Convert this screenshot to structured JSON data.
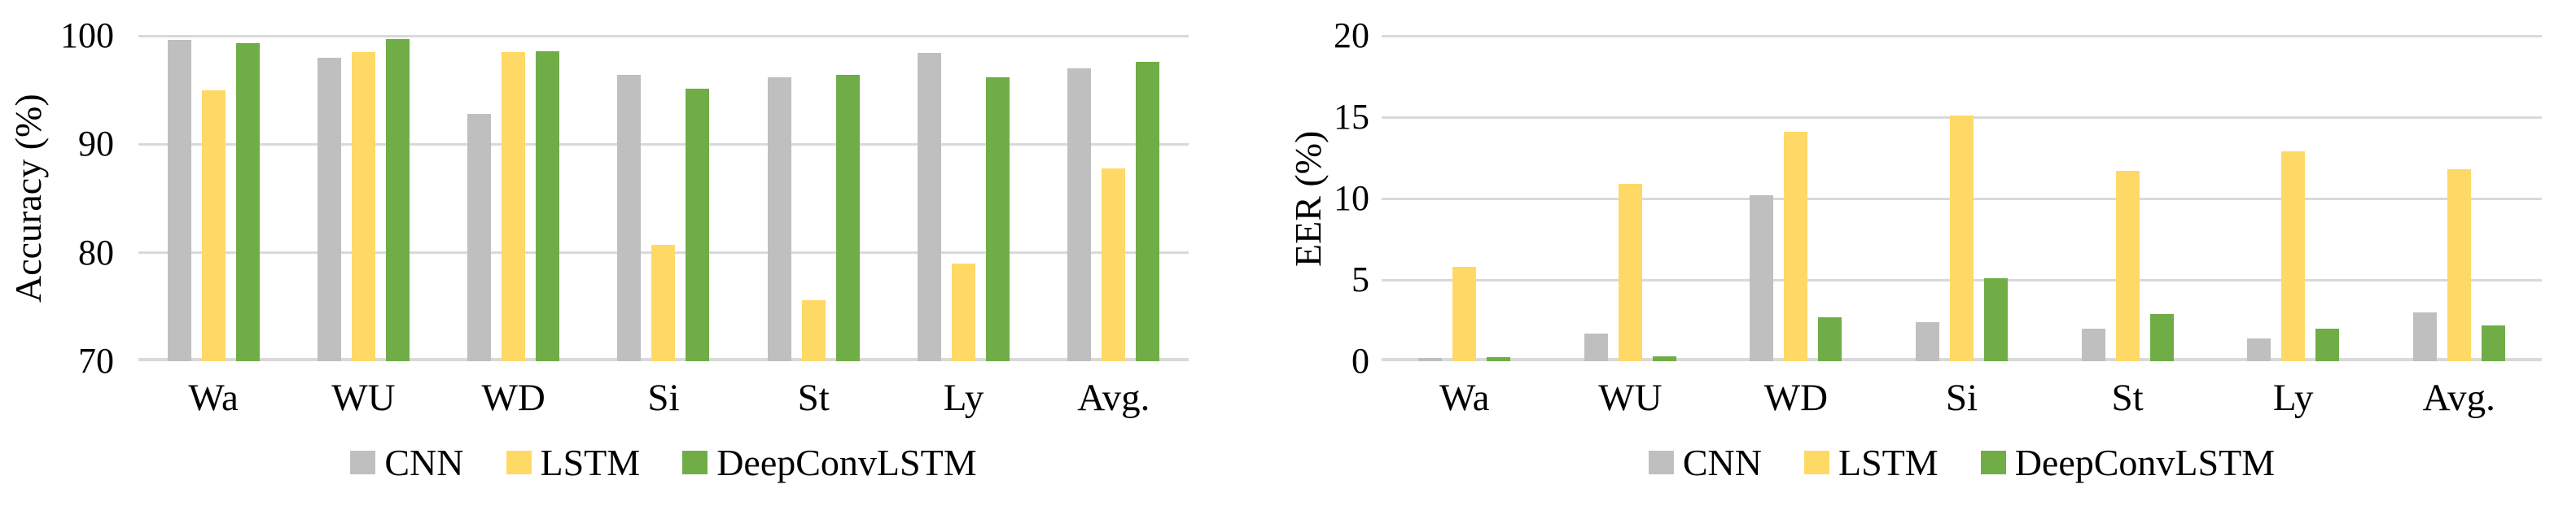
{
  "chart_data": [
    {
      "type": "bar",
      "ylabel": "Accuracy (%)",
      "ylim": [
        70,
        100
      ],
      "yticks": [
        100,
        90,
        80,
        70
      ],
      "grid": "horizontal",
      "legend_position": "bottom",
      "categories": [
        "Wa",
        "WU",
        "WD",
        "Si",
        "St",
        "Ly",
        "Avg."
      ],
      "series": [
        {
          "name": "CNN",
          "color": "#BFBFBF",
          "values": [
            99.6,
            98.0,
            92.8,
            96.4,
            96.2,
            98.4,
            97.0
          ]
        },
        {
          "name": "LSTM",
          "color": "#FFD966",
          "values": [
            95.0,
            98.5,
            98.5,
            80.7,
            75.6,
            79.0,
            87.8
          ]
        },
        {
          "name": "DeepConvLSTM",
          "color": "#70AD47",
          "values": [
            99.3,
            99.7,
            98.6,
            95.1,
            96.4,
            96.2,
            97.6
          ]
        }
      ]
    },
    {
      "type": "bar",
      "ylabel": "EER (%)",
      "ylim": [
        0,
        20
      ],
      "yticks": [
        20,
        15,
        10,
        5,
        0
      ],
      "grid": "horizontal",
      "legend_position": "bottom",
      "categories": [
        "Wa",
        "WU",
        "WD",
        "Si",
        "St",
        "Ly",
        "Avg."
      ],
      "series": [
        {
          "name": "CNN",
          "color": "#BFBFBF",
          "values": [
            0.2,
            1.7,
            10.2,
            2.4,
            2.0,
            1.4,
            3.0
          ]
        },
        {
          "name": "LSTM",
          "color": "#FFD966",
          "values": [
            5.8,
            10.9,
            14.1,
            15.1,
            11.7,
            12.9,
            11.8
          ]
        },
        {
          "name": "DeepConvLSTM",
          "color": "#70AD47",
          "values": [
            0.25,
            0.3,
            2.7,
            5.1,
            2.9,
            2.0,
            2.2
          ]
        }
      ]
    }
  ],
  "colors": {
    "gridline": "#D9D9D9",
    "axis_line": "#D9D9D9",
    "text": "#000000",
    "background": "#FFFFFF"
  }
}
